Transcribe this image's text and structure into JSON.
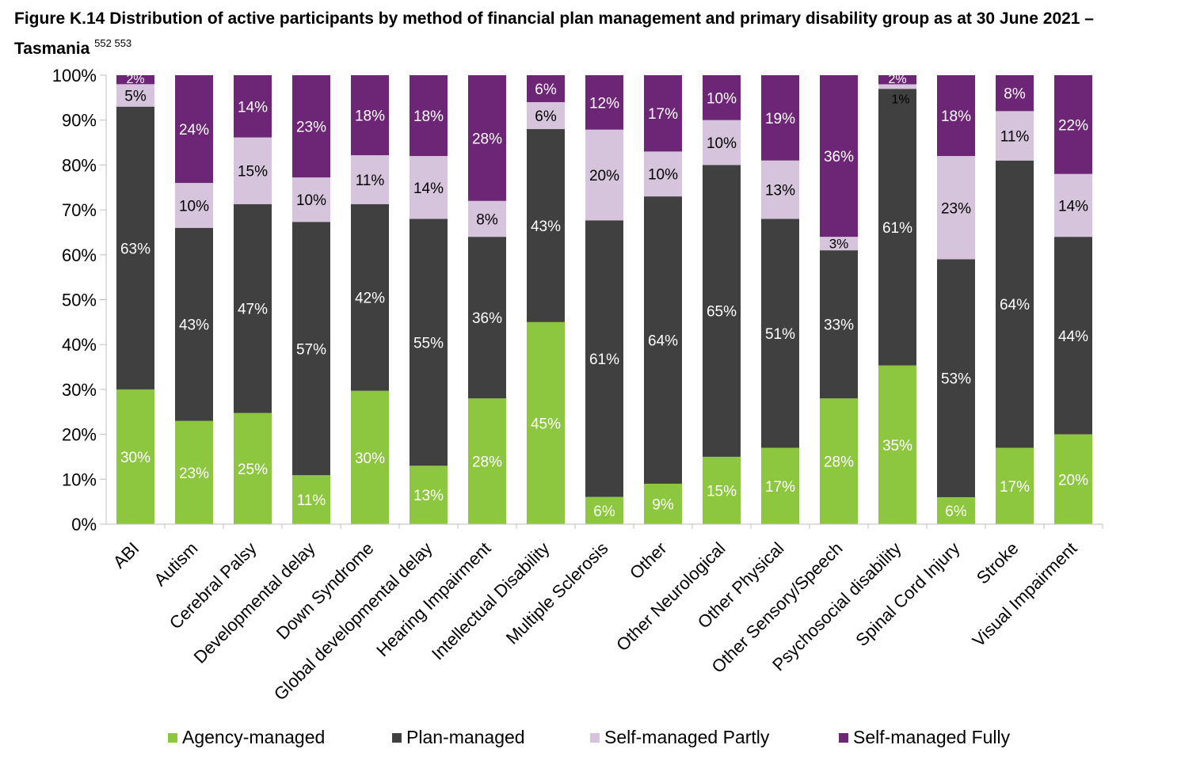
{
  "title": {
    "text": "Figure K.14 Distribution of active participants by method of financial plan management and primary disability group as at 30 June 2021 – Tasmania",
    "footnotes": "552 553"
  },
  "chart_data": {
    "type": "bar",
    "stacked": true,
    "percent_stacked": true,
    "title": "Figure K.14 Distribution of active participants by method of financial plan management and primary disability group as at 30 June 2021 – Tasmania",
    "xlabel": "",
    "ylabel": "",
    "ylim": [
      0,
      100
    ],
    "yticks": [
      "0%",
      "10%",
      "20%",
      "30%",
      "40%",
      "50%",
      "60%",
      "70%",
      "80%",
      "90%",
      "100%"
    ],
    "grid": false,
    "legend_position": "bottom",
    "categories": [
      "ABI",
      "Autism",
      "Cerebral Palsy",
      "Developmental delay",
      "Down Syndrome",
      "Global developmental delay",
      "Hearing Impairment",
      "Intellectual Disability",
      "Multiple Sclerosis",
      "Other",
      "Other Neurological",
      "Other Physical",
      "Other Sensory/Speech",
      "Psychosocial disability",
      "Spinal Cord Injury",
      "Stroke",
      "Visual Impairment"
    ],
    "series": [
      {
        "name": "Agency-managed",
        "color": "#8dc63f",
        "values": [
          30,
          23,
          25,
          11,
          30,
          13,
          28,
          45,
          6,
          9,
          15,
          17,
          28,
          35,
          6,
          17,
          20
        ]
      },
      {
        "name": "Plan-managed",
        "color": "#404040",
        "values": [
          63,
          43,
          47,
          57,
          42,
          55,
          36,
          43,
          61,
          64,
          65,
          51,
          33,
          61,
          53,
          64,
          44
        ]
      },
      {
        "name": "Self-managed Partly",
        "color": "#d5c4dc",
        "values": [
          5,
          10,
          15,
          10,
          11,
          14,
          8,
          6,
          20,
          10,
          10,
          13,
          3,
          1,
          23,
          11,
          14
        ]
      },
      {
        "name": "Self-managed Fully",
        "color": "#6d2676",
        "values": [
          2,
          24,
          14,
          23,
          18,
          18,
          28,
          6,
          12,
          17,
          10,
          19,
          36,
          2,
          18,
          8,
          22
        ]
      }
    ]
  }
}
